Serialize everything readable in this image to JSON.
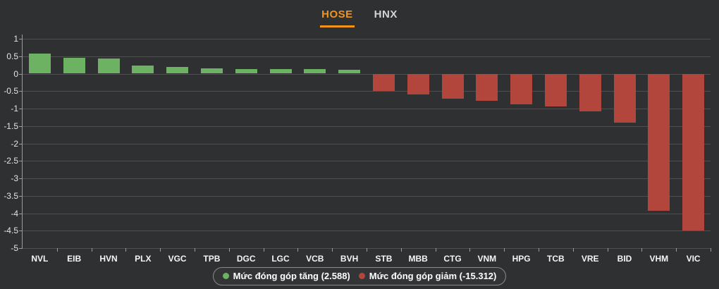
{
  "tabs": [
    {
      "label": "HOSE",
      "active": true
    },
    {
      "label": "HNX",
      "active": false
    }
  ],
  "legend": {
    "up_label": "Mức đóng góp tăng (2.588)",
    "down_label": "Mức đóng góp giảm (-15.312)"
  },
  "colors": {
    "background": "#2f3031",
    "positive": "#6db263",
    "negative": "#b2463c",
    "accent_tab": "#f0941e",
    "grid": "#4f4f4f",
    "axis": "#9b9b9b"
  },
  "chart_data": {
    "type": "bar",
    "title": "",
    "xlabel": "",
    "ylabel": "",
    "categories": [
      "NVL",
      "EIB",
      "HVN",
      "PLX",
      "VGC",
      "TPB",
      "DGC",
      "LGC",
      "VCB",
      "BVH",
      "STB",
      "MBB",
      "CTG",
      "VNM",
      "HPG",
      "TCB",
      "VRE",
      "BID",
      "VHM",
      "VIC"
    ],
    "values": [
      0.58,
      0.46,
      0.43,
      0.23,
      0.19,
      0.16,
      0.14,
      0.14,
      0.13,
      0.11,
      -0.49,
      -0.59,
      -0.72,
      -0.78,
      -0.88,
      -0.94,
      -1.08,
      -1.4,
      -3.93,
      -4.5
    ],
    "ylim": [
      -5,
      1
    ],
    "ytick_step": 0.5,
    "grid": true,
    "legend_position": "bottom",
    "positive_total": 2.588,
    "negative_total": -15.312
  }
}
